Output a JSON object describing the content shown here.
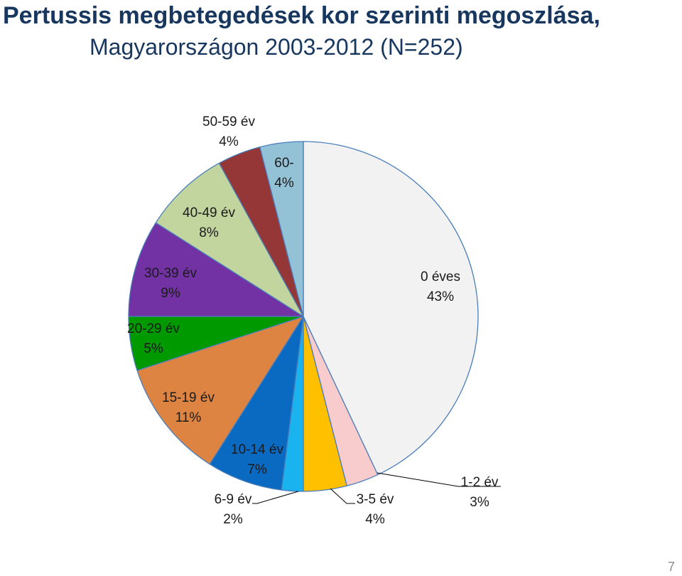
{
  "header": {
    "title_line1": "Pertussis megbetegedések kor szerinti megoszlása,",
    "title_line2": "Magyarországon 2003-2012 (N=252)"
  },
  "footer": {
    "page_number": "7"
  },
  "chart_data": {
    "type": "pie",
    "start_angle_deg": 0,
    "direction": "clockwise",
    "slices": [
      {
        "label": "0 éves",
        "value_label": "43%",
        "value": 43,
        "color": "#f2f2f2"
      },
      {
        "label": "1-2 év",
        "value_label": "3%",
        "value": 3,
        "color": "#f8cbcd"
      },
      {
        "label": "3-5 év",
        "value_label": "4%",
        "value": 4,
        "color": "#ffc000"
      },
      {
        "label": "6-9 év",
        "value_label": "2%",
        "value": 2,
        "color": "#19b3ef"
      },
      {
        "label": "10-14 év",
        "value_label": "7%",
        "value": 7,
        "color": "#0a6ac2"
      },
      {
        "label": "15-19 év",
        "value_label": "11%",
        "value": 11,
        "color": "#dd8443"
      },
      {
        "label": "20-29 év",
        "value_label": "5%",
        "value": 5,
        "color": "#009a00"
      },
      {
        "label": "30-39 év",
        "value_label": "9%",
        "value": 9,
        "color": "#7232a3"
      },
      {
        "label": "40-49 év",
        "value_label": "8%",
        "value": 8,
        "color": "#c2d59e"
      },
      {
        "label": "50-59 év",
        "value_label": "4%",
        "value": 4,
        "color": "#943736"
      },
      {
        "label": "60-",
        "value_label": "4%",
        "value": 4,
        "color": "#93c2d6"
      }
    ]
  }
}
